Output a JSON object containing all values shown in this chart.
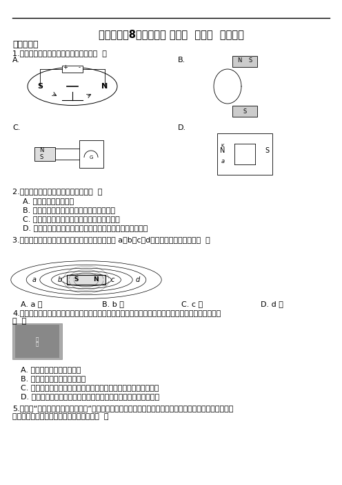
{
  "title": "浙教版科学8年级下学期 第一章  电与磁  单元试卷",
  "section1": "一、选择题",
  "q1": "1.下列能说明电动机工作原理的实验是（  ）",
  "q2_header": "2.关于电磁现象，下列说法正确的是（  ）",
  "q2_A": "A. 钙制品很容易被磁化",
  "q2_B": "B. 电磁继电器中的铁芯，可以用永磁体代替",
  "q2_C": "C. 发电机正常工作时，是将电能转化为机械能",
  "q2_D": "D. 直流电动机的换向器，由两个彼此绝缘的金属半圆环组成",
  "q3_header": "3.如图所示的是条形磁体周围的磁感线分布图，在 a、b、c、d四点中，磁场最强的是（  ）",
  "q3_A": "A. a 点",
  "q3_B": "B. b 点",
  "q3_C": "C. c 点",
  "q3_D": "D. d 点",
  "q4_header": "4.如图所示是利用磁悬浮原理浮在空中的盆栽，盆栽底部有磁体，底座内装有电磁铁，给盆栽浇水前后",
  "q4_header2": "（  ）",
  "q4_A": "A. 盆栽受到的磁力大小不变",
  "q4_B": "B. 底座对桌面的压强大小不变",
  "q4_C": "C. 要使盆栽与底座之间距离不变，可改变电磁铁线圈内的电流方向",
  "q4_D": "D. 要使盆栽与底座之间距离不变，可适当增大电磁铁线圈内的电流",
  "q5_header": "5.在探究“通电螺线管外部磁场分布”的实验中，开关断开时小磁针甲、乙的指向如图所示，当开关闭合时，",
  "q5_header2": "通电螺线管有磁性，则下列说法正确的是（  ）",
  "bg_color": "#ffffff",
  "text_color": "#000000",
  "title_fontsize": 11,
  "body_fontsize": 8.0,
  "line_color": "#000000"
}
